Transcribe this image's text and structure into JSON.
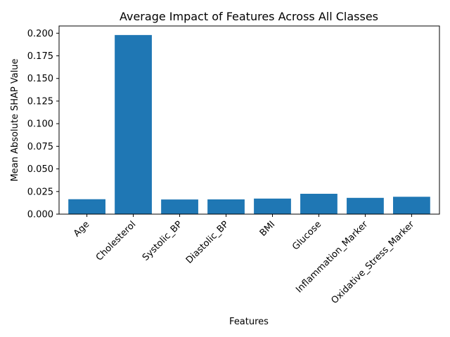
{
  "chart_data": {
    "type": "bar",
    "title": "Average Impact of Features Across All Classes",
    "xlabel": "Features",
    "ylabel": "Mean Absolute SHAP Value",
    "categories": [
      "Age",
      "Cholesterol",
      "Systolic_BP",
      "Diastolic_BP",
      "BMI",
      "Glucose",
      "Inflammation_Marker",
      "Oxidative_Stress_Marker"
    ],
    "values": [
      0.0165,
      0.198,
      0.0162,
      0.0163,
      0.0172,
      0.0225,
      0.018,
      0.0192
    ],
    "ylim": [
      0,
      0.208
    ],
    "yticks": [
      0.0,
      0.025,
      0.05,
      0.075,
      0.1,
      0.125,
      0.15,
      0.175,
      0.2
    ],
    "ytick_labels": [
      "0.000",
      "0.025",
      "0.050",
      "0.075",
      "0.100",
      "0.125",
      "0.150",
      "0.175",
      "0.200"
    ],
    "bar_color": "#1f77b4",
    "grid": false,
    "legend": false
  }
}
